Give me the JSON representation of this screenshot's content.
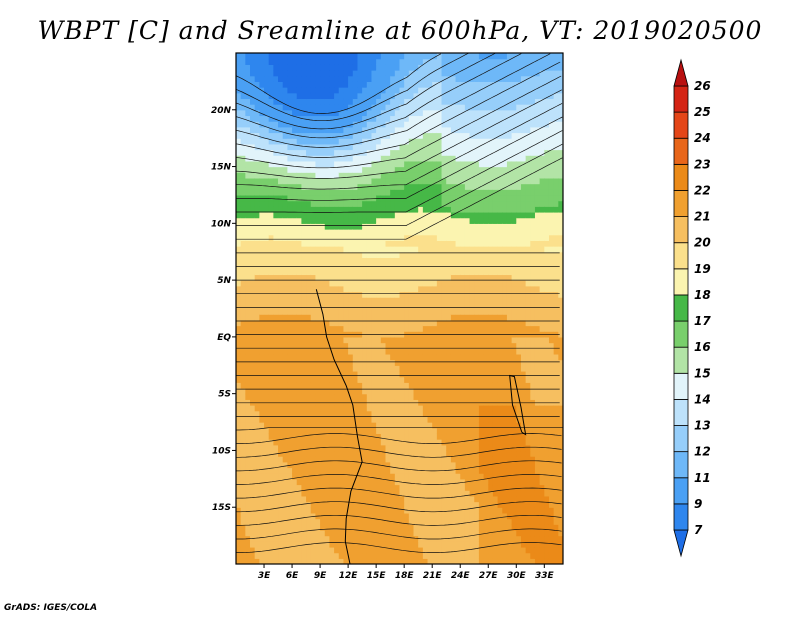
{
  "title": "WBPT [C] and Sreamline at 600hPa, VT: 2019020500",
  "credit": "GrADS: IGES/COLA",
  "chart_data": {
    "type": "heatmap",
    "title": "WBPT [C] and Sreamline at 600hPa, VT: 2019020500",
    "variable": "Wet-bulb potential temperature",
    "units": "C",
    "overlay": "streamlines",
    "level": "600hPa",
    "valid_time": "2019020500",
    "x_range": [
      0,
      35
    ],
    "y_range": [
      -20,
      25
    ],
    "x_ticks": [
      {
        "value": 3,
        "label": "3E"
      },
      {
        "value": 6,
        "label": "6E"
      },
      {
        "value": 9,
        "label": "9E"
      },
      {
        "value": 12,
        "label": "12E"
      },
      {
        "value": 15,
        "label": "15E"
      },
      {
        "value": 18,
        "label": "18E"
      },
      {
        "value": 21,
        "label": "21E"
      },
      {
        "value": 24,
        "label": "24E"
      },
      {
        "value": 27,
        "label": "27E"
      },
      {
        "value": 30,
        "label": "30E"
      },
      {
        "value": 33,
        "label": "33E"
      }
    ],
    "y_ticks": [
      {
        "value": 20,
        "label": "20N"
      },
      {
        "value": 15,
        "label": "15N"
      },
      {
        "value": 10,
        "label": "10N"
      },
      {
        "value": 5,
        "label": "5N"
      },
      {
        "value": 0,
        "label": "EQ"
      },
      {
        "value": -5,
        "label": "5S"
      },
      {
        "value": -10,
        "label": "10S"
      },
      {
        "value": -15,
        "label": "15S"
      }
    ],
    "colorbar": {
      "levels": [
        7,
        9,
        11,
        12,
        13,
        14,
        15,
        16,
        17,
        18,
        19,
        20,
        21,
        22,
        23,
        24,
        25,
        26
      ],
      "colors": [
        "#1e6ee6",
        "#2e86ee",
        "#4aa0f4",
        "#6eb8f8",
        "#96ceFa",
        "#bde2fb",
        "#e2f4fa",
        "#b2e4a6",
        "#79cf6c",
        "#46b847",
        "#fbf4b0",
        "#fbe08c",
        "#f6bf60",
        "#f0a030",
        "#eb8a18",
        "#e8661a",
        "#e44618",
        "#d42414",
        "#b81010"
      ]
    }
  }
}
